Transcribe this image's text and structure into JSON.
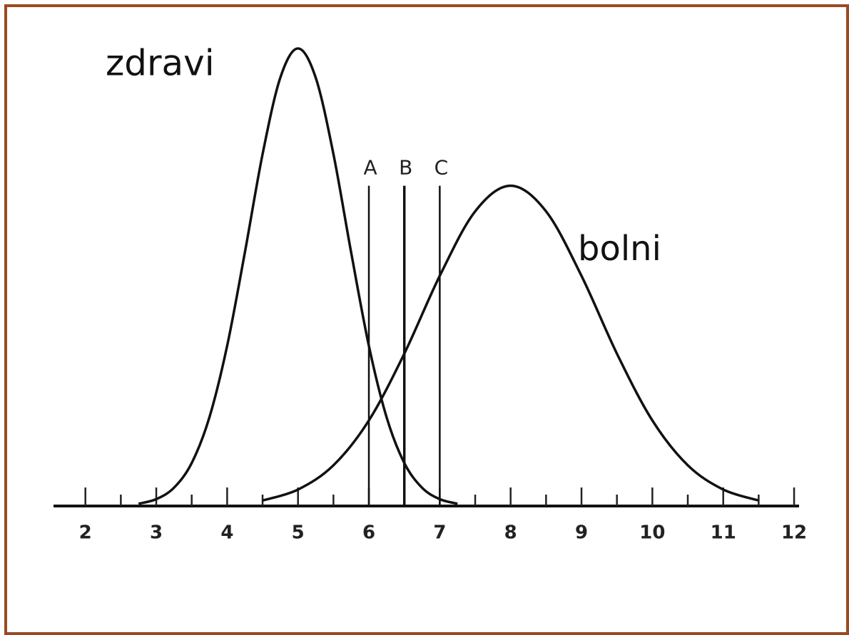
{
  "chart_data": {
    "type": "line",
    "xlim": [
      1.55,
      12.07
    ],
    "ylim": [
      0,
      100
    ],
    "xticks": [
      2,
      3,
      4,
      5,
      6,
      7,
      8,
      9,
      10,
      11,
      12
    ],
    "xminor": [
      2.5,
      3.5,
      4.5,
      5.5,
      6.5,
      7.5,
      8.5,
      9.5,
      10.5,
      11.5
    ],
    "series": [
      {
        "name": "zdravi",
        "color": "#111111",
        "x": [
          2.75,
          3,
          3.25,
          3.5,
          3.75,
          4,
          4.25,
          4.5,
          4.75,
          5,
          5.25,
          5.5,
          5.75,
          6,
          6.25,
          6.5,
          6.75,
          7,
          7.25
        ],
        "values": [
          0.5,
          1.5,
          4.0,
          9.4,
          19.4,
          35.0,
          55.4,
          76.9,
          93.6,
          100,
          93.6,
          76.9,
          55.4,
          35.0,
          19.4,
          9.4,
          4.0,
          1.5,
          0.5
        ]
      },
      {
        "name": "bolni",
        "color": "#111111",
        "x": [
          4.5,
          5,
          5.5,
          6,
          6.5,
          7,
          7.5,
          8,
          8.5,
          9,
          9.5,
          10,
          10.5,
          11,
          11.5
        ],
        "values": [
          1.2,
          3.6,
          8.9,
          18.7,
          33.3,
          50.3,
          64.4,
          70,
          64.4,
          50.3,
          33.3,
          18.7,
          8.9,
          3.6,
          1.2
        ]
      }
    ],
    "vlines": [
      {
        "label": "A",
        "x": 6,
        "top": 70
      },
      {
        "label": "B",
        "x": 6.5,
        "top": 70
      },
      {
        "label": "C",
        "x": 7,
        "top": 70
      }
    ]
  }
}
